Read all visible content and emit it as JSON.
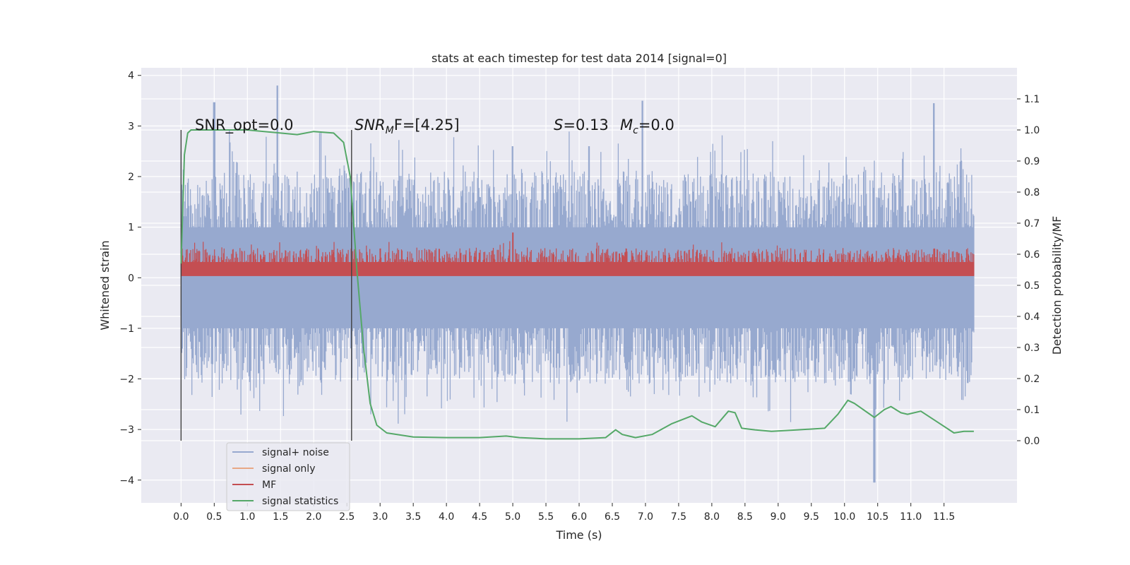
{
  "chart_data": {
    "type": "line",
    "title": "stats at each timestep for test data 2014 [signal=0]",
    "xlabel": "Time (s)",
    "ylabel_left": "Whitened strain",
    "ylabel_right": "Detection probability/MF",
    "xlim": [
      -0.6,
      12.6
    ],
    "ylim_left": [
      -4.45,
      4.15
    ],
    "ylim_right": [
      -0.2,
      1.2
    ],
    "x_ticks": [
      "0.0",
      "0.5",
      "1.0",
      "1.5",
      "2.0",
      "2.5",
      "3.0",
      "3.5",
      "4.0",
      "4.5",
      "5.0",
      "5.5",
      "6.0",
      "6.5",
      "7.0",
      "7.5",
      "8.0",
      "8.5",
      "9.0",
      "9.5",
      "10.0",
      "10.5",
      "11.0",
      "11.5"
    ],
    "y_left_ticks": [
      "−4",
      "−3",
      "−2",
      "−1",
      "0",
      "1",
      "2",
      "3",
      "4"
    ],
    "y_right_ticks": [
      "0.0",
      "0.1",
      "0.2",
      "0.3",
      "0.4",
      "0.5",
      "0.6",
      "0.7",
      "0.8",
      "0.9",
      "1.0",
      "1.1"
    ],
    "grid": true,
    "legend_position": "lower-left",
    "vertical_lines": [
      0.0,
      2.57
    ],
    "annotations": {
      "snr_opt": "SNR_opt=0.0",
      "snr_mf_sym": "SNR",
      "snr_mf_sub": "M",
      "snr_mf_rest": "F=[4.25]",
      "s_sym": "S",
      "s_rest": "=0.13",
      "mc_sym": "M",
      "mc_sub": "c",
      "mc_rest": "=0.0"
    },
    "series": [
      {
        "name": "signal+ noise",
        "color": "#97a9cf",
        "axis": "left",
        "kind": "noise-band",
        "x_range": [
          0.0,
          11.95
        ],
        "envelope_upper": 2.3,
        "envelope_lower": -2.3,
        "peaks": [
          [
            0.5,
            3.47
          ],
          [
            1.45,
            3.8
          ],
          [
            5.0,
            2.6
          ],
          [
            6.15,
            2.6
          ],
          [
            6.95,
            3.5
          ],
          [
            10.45,
            -4.05
          ],
          [
            11.35,
            3.45
          ]
        ]
      },
      {
        "name": "signal only",
        "color": "#e8a886",
        "axis": "left",
        "kind": "flat",
        "values": []
      },
      {
        "name": "MF",
        "color": "#c44e52",
        "axis": "right",
        "kind": "noise-band",
        "x_range": [
          0.0,
          11.95
        ],
        "base": 0.53,
        "typical_max": 0.62,
        "peaks": [
          [
            5.0,
            0.67
          ]
        ]
      },
      {
        "name": "signal statistics",
        "color": "#55a868",
        "axis": "right",
        "kind": "line",
        "x": [
          0.0,
          0.05,
          0.1,
          0.15,
          0.25,
          0.5,
          1.0,
          1.5,
          1.75,
          2.0,
          2.3,
          2.45,
          2.55,
          2.65,
          2.75,
          2.85,
          2.95,
          3.1,
          3.5,
          4.0,
          4.5,
          4.9,
          5.1,
          5.5,
          6.0,
          6.4,
          6.55,
          6.65,
          6.85,
          7.1,
          7.4,
          7.7,
          7.85,
          8.05,
          8.25,
          8.35,
          8.45,
          8.65,
          8.9,
          9.3,
          9.7,
          9.9,
          10.05,
          10.15,
          10.45,
          10.6,
          10.7,
          10.85,
          10.95,
          11.15,
          11.4,
          11.65,
          11.8,
          11.95
        ],
        "y": [
          0.57,
          0.92,
          0.99,
          1.0,
          1.0,
          1.0,
          1.0,
          0.99,
          0.985,
          0.995,
          0.99,
          0.96,
          0.85,
          0.55,
          0.3,
          0.12,
          0.05,
          0.025,
          0.012,
          0.01,
          0.01,
          0.015,
          0.01,
          0.006,
          0.006,
          0.01,
          0.035,
          0.02,
          0.01,
          0.02,
          0.055,
          0.08,
          0.06,
          0.045,
          0.095,
          0.09,
          0.04,
          0.035,
          0.03,
          0.035,
          0.04,
          0.085,
          0.13,
          0.12,
          0.075,
          0.1,
          0.11,
          0.09,
          0.085,
          0.095,
          0.06,
          0.025,
          0.03,
          0.03
        ]
      }
    ]
  }
}
